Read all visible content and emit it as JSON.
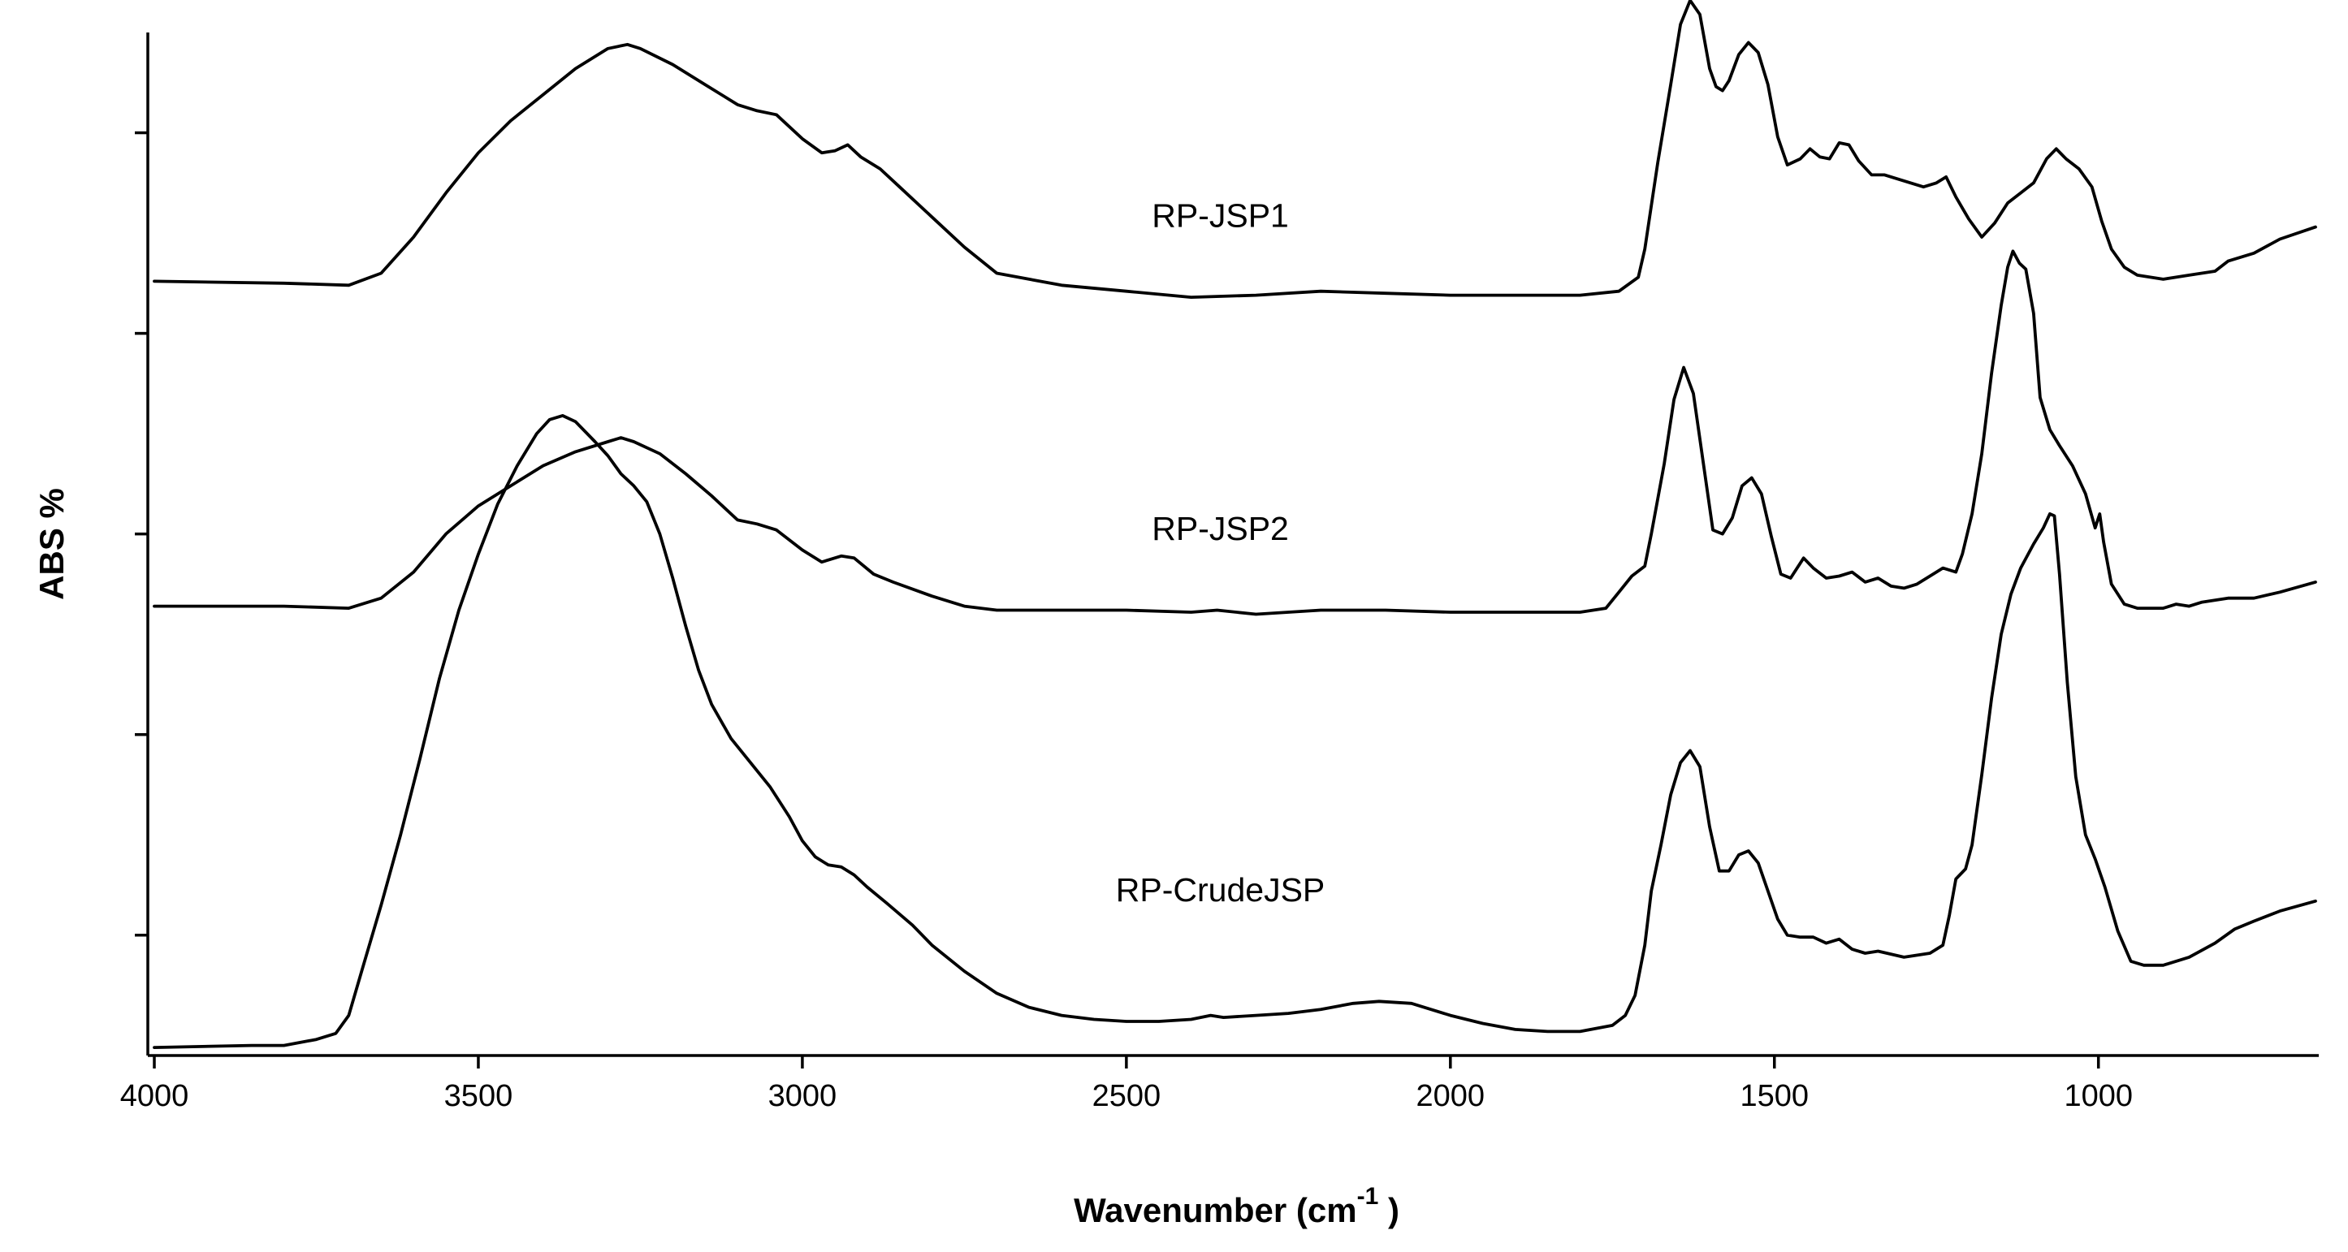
{
  "chart_data": {
    "type": "line",
    "title": "",
    "xlabel": "Wavenumber (cm",
    "xlabel_superscript": "-1",
    "xlabel_suffix": " )",
    "ylabel": "ABS %",
    "x_reversed": true,
    "xlim": [
      4000,
      660
    ],
    "ylim": [
      0,
      5.1
    ],
    "x_ticks": [
      4000,
      3500,
      3000,
      2500,
      2000,
      1500,
      1000
    ],
    "x_tick_labels": [
      "4000",
      "3500",
      "3000",
      "2500",
      "2000",
      "1500",
      "1000"
    ],
    "y_ticks": [
      0.6,
      1.6,
      2.6,
      3.6,
      4.6
    ],
    "y_tick_labels_shown": false,
    "grid": false,
    "legend": "none",
    "line_color": "#000000",
    "series": [
      {
        "name": "RP-JSP1",
        "points": [
          [
            4000,
            3.86
          ],
          [
            3800,
            3.85
          ],
          [
            3700,
            3.84
          ],
          [
            3650,
            3.9
          ],
          [
            3600,
            4.08
          ],
          [
            3550,
            4.3
          ],
          [
            3500,
            4.5
          ],
          [
            3450,
            4.66
          ],
          [
            3400,
            4.79
          ],
          [
            3350,
            4.92
          ],
          [
            3300,
            5.02
          ],
          [
            3270,
            5.04
          ],
          [
            3250,
            5.02
          ],
          [
            3200,
            4.94
          ],
          [
            3150,
            4.84
          ],
          [
            3100,
            4.74
          ],
          [
            3070,
            4.71
          ],
          [
            3040,
            4.69
          ],
          [
            3000,
            4.57
          ],
          [
            2970,
            4.5
          ],
          [
            2950,
            4.51
          ],
          [
            2930,
            4.54
          ],
          [
            2910,
            4.48
          ],
          [
            2880,
            4.42
          ],
          [
            2850,
            4.33
          ],
          [
            2800,
            4.18
          ],
          [
            2750,
            4.03
          ],
          [
            2700,
            3.9
          ],
          [
            2600,
            3.84
          ],
          [
            2500,
            3.81
          ],
          [
            2400,
            3.78
          ],
          [
            2300,
            3.79
          ],
          [
            2200,
            3.81
          ],
          [
            2100,
            3.8
          ],
          [
            2000,
            3.79
          ],
          [
            1900,
            3.79
          ],
          [
            1800,
            3.79
          ],
          [
            1740,
            3.81
          ],
          [
            1710,
            3.88
          ],
          [
            1700,
            4.02
          ],
          [
            1680,
            4.45
          ],
          [
            1660,
            4.84
          ],
          [
            1645,
            5.14
          ],
          [
            1630,
            5.26
          ],
          [
            1615,
            5.19
          ],
          [
            1600,
            4.92
          ],
          [
            1590,
            4.83
          ],
          [
            1580,
            4.81
          ],
          [
            1570,
            4.86
          ],
          [
            1555,
            4.99
          ],
          [
            1540,
            5.05
          ],
          [
            1525,
            5.0
          ],
          [
            1510,
            4.84
          ],
          [
            1495,
            4.58
          ],
          [
            1480,
            4.44
          ],
          [
            1460,
            4.47
          ],
          [
            1445,
            4.52
          ],
          [
            1430,
            4.48
          ],
          [
            1415,
            4.47
          ],
          [
            1400,
            4.55
          ],
          [
            1385,
            4.54
          ],
          [
            1370,
            4.46
          ],
          [
            1350,
            4.39
          ],
          [
            1330,
            4.39
          ],
          [
            1300,
            4.36
          ],
          [
            1270,
            4.33
          ],
          [
            1250,
            4.35
          ],
          [
            1235,
            4.38
          ],
          [
            1220,
            4.28
          ],
          [
            1200,
            4.17
          ],
          [
            1180,
            4.08
          ],
          [
            1160,
            4.15
          ],
          [
            1140,
            4.25
          ],
          [
            1120,
            4.3
          ],
          [
            1100,
            4.35
          ],
          [
            1080,
            4.47
          ],
          [
            1065,
            4.52
          ],
          [
            1050,
            4.47
          ],
          [
            1030,
            4.42
          ],
          [
            1010,
            4.33
          ],
          [
            995,
            4.16
          ],
          [
            980,
            4.02
          ],
          [
            960,
            3.93
          ],
          [
            940,
            3.89
          ],
          [
            900,
            3.87
          ],
          [
            860,
            3.89
          ],
          [
            820,
            3.91
          ],
          [
            800,
            3.96
          ],
          [
            760,
            4.0
          ],
          [
            720,
            4.07
          ],
          [
            665,
            4.13
          ]
        ]
      },
      {
        "name": "RP-JSP2",
        "points": [
          [
            4000,
            2.24
          ],
          [
            3800,
            2.24
          ],
          [
            3700,
            2.23
          ],
          [
            3650,
            2.28
          ],
          [
            3600,
            2.41
          ],
          [
            3550,
            2.6
          ],
          [
            3500,
            2.74
          ],
          [
            3450,
            2.84
          ],
          [
            3400,
            2.94
          ],
          [
            3350,
            3.01
          ],
          [
            3300,
            3.06
          ],
          [
            3280,
            3.08
          ],
          [
            3260,
            3.06
          ],
          [
            3220,
            3.0
          ],
          [
            3180,
            2.9
          ],
          [
            3140,
            2.79
          ],
          [
            3100,
            2.67
          ],
          [
            3070,
            2.65
          ],
          [
            3040,
            2.62
          ],
          [
            3000,
            2.52
          ],
          [
            2970,
            2.46
          ],
          [
            2940,
            2.49
          ],
          [
            2920,
            2.48
          ],
          [
            2890,
            2.4
          ],
          [
            2860,
            2.36
          ],
          [
            2800,
            2.29
          ],
          [
            2750,
            2.24
          ],
          [
            2700,
            2.22
          ],
          [
            2600,
            2.22
          ],
          [
            2500,
            2.22
          ],
          [
            2400,
            2.21
          ],
          [
            2360,
            2.22
          ],
          [
            2300,
            2.2
          ],
          [
            2200,
            2.22
          ],
          [
            2100,
            2.22
          ],
          [
            2000,
            2.21
          ],
          [
            1900,
            2.21
          ],
          [
            1800,
            2.21
          ],
          [
            1760,
            2.23
          ],
          [
            1740,
            2.31
          ],
          [
            1720,
            2.39
          ],
          [
            1700,
            2.44
          ],
          [
            1690,
            2.6
          ],
          [
            1670,
            2.95
          ],
          [
            1655,
            3.27
          ],
          [
            1640,
            3.43
          ],
          [
            1625,
            3.3
          ],
          [
            1610,
            2.96
          ],
          [
            1595,
            2.62
          ],
          [
            1580,
            2.6
          ],
          [
            1565,
            2.68
          ],
          [
            1550,
            2.84
          ],
          [
            1535,
            2.88
          ],
          [
            1520,
            2.8
          ],
          [
            1505,
            2.59
          ],
          [
            1490,
            2.4
          ],
          [
            1475,
            2.38
          ],
          [
            1455,
            2.48
          ],
          [
            1440,
            2.43
          ],
          [
            1420,
            2.38
          ],
          [
            1400,
            2.39
          ],
          [
            1380,
            2.41
          ],
          [
            1360,
            2.36
          ],
          [
            1340,
            2.38
          ],
          [
            1320,
            2.34
          ],
          [
            1300,
            2.33
          ],
          [
            1280,
            2.35
          ],
          [
            1260,
            2.39
          ],
          [
            1240,
            2.43
          ],
          [
            1220,
            2.41
          ],
          [
            1210,
            2.5
          ],
          [
            1195,
            2.7
          ],
          [
            1180,
            3.0
          ],
          [
            1165,
            3.4
          ],
          [
            1150,
            3.74
          ],
          [
            1140,
            3.93
          ],
          [
            1132,
            4.01
          ],
          [
            1122,
            3.95
          ],
          [
            1112,
            3.92
          ],
          [
            1100,
            3.7
          ],
          [
            1090,
            3.28
          ],
          [
            1075,
            3.12
          ],
          [
            1060,
            3.04
          ],
          [
            1040,
            2.94
          ],
          [
            1020,
            2.8
          ],
          [
            1005,
            2.63
          ],
          [
            998,
            2.7
          ],
          [
            992,
            2.56
          ],
          [
            980,
            2.35
          ],
          [
            960,
            2.25
          ],
          [
            940,
            2.23
          ],
          [
            900,
            2.23
          ],
          [
            880,
            2.25
          ],
          [
            860,
            2.24
          ],
          [
            840,
            2.26
          ],
          [
            800,
            2.28
          ],
          [
            760,
            2.28
          ],
          [
            720,
            2.31
          ],
          [
            665,
            2.36
          ]
        ]
      },
      {
        "name": "RP-CrudeJSP",
        "points": [
          [
            4000,
            0.04
          ],
          [
            3850,
            0.05
          ],
          [
            3800,
            0.05
          ],
          [
            3750,
            0.08
          ],
          [
            3720,
            0.11
          ],
          [
            3700,
            0.2
          ],
          [
            3680,
            0.42
          ],
          [
            3650,
            0.75
          ],
          [
            3620,
            1.1
          ],
          [
            3590,
            1.48
          ],
          [
            3560,
            1.88
          ],
          [
            3530,
            2.22
          ],
          [
            3500,
            2.5
          ],
          [
            3470,
            2.75
          ],
          [
            3440,
            2.94
          ],
          [
            3410,
            3.1
          ],
          [
            3390,
            3.17
          ],
          [
            3370,
            3.19
          ],
          [
            3350,
            3.16
          ],
          [
            3320,
            3.06
          ],
          [
            3300,
            2.99
          ],
          [
            3280,
            2.9
          ],
          [
            3260,
            2.84
          ],
          [
            3240,
            2.76
          ],
          [
            3220,
            2.6
          ],
          [
            3200,
            2.38
          ],
          [
            3180,
            2.14
          ],
          [
            3160,
            1.92
          ],
          [
            3140,
            1.75
          ],
          [
            3110,
            1.58
          ],
          [
            3080,
            1.46
          ],
          [
            3050,
            1.34
          ],
          [
            3020,
            1.19
          ],
          [
            3000,
            1.07
          ],
          [
            2980,
            0.99
          ],
          [
            2960,
            0.95
          ],
          [
            2940,
            0.94
          ],
          [
            2920,
            0.9
          ],
          [
            2900,
            0.84
          ],
          [
            2870,
            0.76
          ],
          [
            2830,
            0.65
          ],
          [
            2800,
            0.55
          ],
          [
            2750,
            0.42
          ],
          [
            2700,
            0.31
          ],
          [
            2650,
            0.24
          ],
          [
            2600,
            0.2
          ],
          [
            2550,
            0.18
          ],
          [
            2500,
            0.17
          ],
          [
            2450,
            0.17
          ],
          [
            2400,
            0.18
          ],
          [
            2370,
            0.2
          ],
          [
            2350,
            0.19
          ],
          [
            2300,
            0.2
          ],
          [
            2250,
            0.21
          ],
          [
            2200,
            0.23
          ],
          [
            2150,
            0.26
          ],
          [
            2110,
            0.27
          ],
          [
            2060,
            0.26
          ],
          [
            2000,
            0.2
          ],
          [
            1950,
            0.16
          ],
          [
            1900,
            0.13
          ],
          [
            1850,
            0.12
          ],
          [
            1800,
            0.12
          ],
          [
            1750,
            0.15
          ],
          [
            1730,
            0.2
          ],
          [
            1715,
            0.3
          ],
          [
            1700,
            0.55
          ],
          [
            1690,
            0.82
          ],
          [
            1675,
            1.05
          ],
          [
            1660,
            1.3
          ],
          [
            1645,
            1.46
          ],
          [
            1630,
            1.52
          ],
          [
            1615,
            1.44
          ],
          [
            1600,
            1.14
          ],
          [
            1585,
            0.92
          ],
          [
            1570,
            0.92
          ],
          [
            1555,
            1.0
          ],
          [
            1540,
            1.02
          ],
          [
            1525,
            0.96
          ],
          [
            1510,
            0.82
          ],
          [
            1495,
            0.68
          ],
          [
            1480,
            0.6
          ],
          [
            1460,
            0.59
          ],
          [
            1440,
            0.59
          ],
          [
            1420,
            0.56
          ],
          [
            1400,
            0.58
          ],
          [
            1380,
            0.53
          ],
          [
            1360,
            0.51
          ],
          [
            1340,
            0.52
          ],
          [
            1300,
            0.49
          ],
          [
            1260,
            0.51
          ],
          [
            1240,
            0.55
          ],
          [
            1230,
            0.7
          ],
          [
            1220,
            0.88
          ],
          [
            1205,
            0.93
          ],
          [
            1195,
            1.05
          ],
          [
            1180,
            1.4
          ],
          [
            1165,
            1.78
          ],
          [
            1150,
            2.1
          ],
          [
            1135,
            2.3
          ],
          [
            1120,
            2.43
          ],
          [
            1100,
            2.55
          ],
          [
            1085,
            2.63
          ],
          [
            1075,
            2.7
          ],
          [
            1068,
            2.69
          ],
          [
            1060,
            2.4
          ],
          [
            1048,
            1.86
          ],
          [
            1035,
            1.39
          ],
          [
            1020,
            1.1
          ],
          [
            1005,
            0.98
          ],
          [
            990,
            0.84
          ],
          [
            970,
            0.62
          ],
          [
            950,
            0.47
          ],
          [
            930,
            0.45
          ],
          [
            900,
            0.45
          ],
          [
            860,
            0.49
          ],
          [
            820,
            0.56
          ],
          [
            790,
            0.63
          ],
          [
            760,
            0.67
          ],
          [
            720,
            0.72
          ],
          [
            665,
            0.77
          ]
        ]
      }
    ],
    "annotations": [
      {
        "text": "RP-JSP1",
        "x": 2355,
        "y": 4.13
      },
      {
        "text": "RP-JSP2",
        "x": 2355,
        "y": 2.57
      },
      {
        "text": "RP-CrudeJSP",
        "x": 2355,
        "y": 0.77
      }
    ]
  }
}
